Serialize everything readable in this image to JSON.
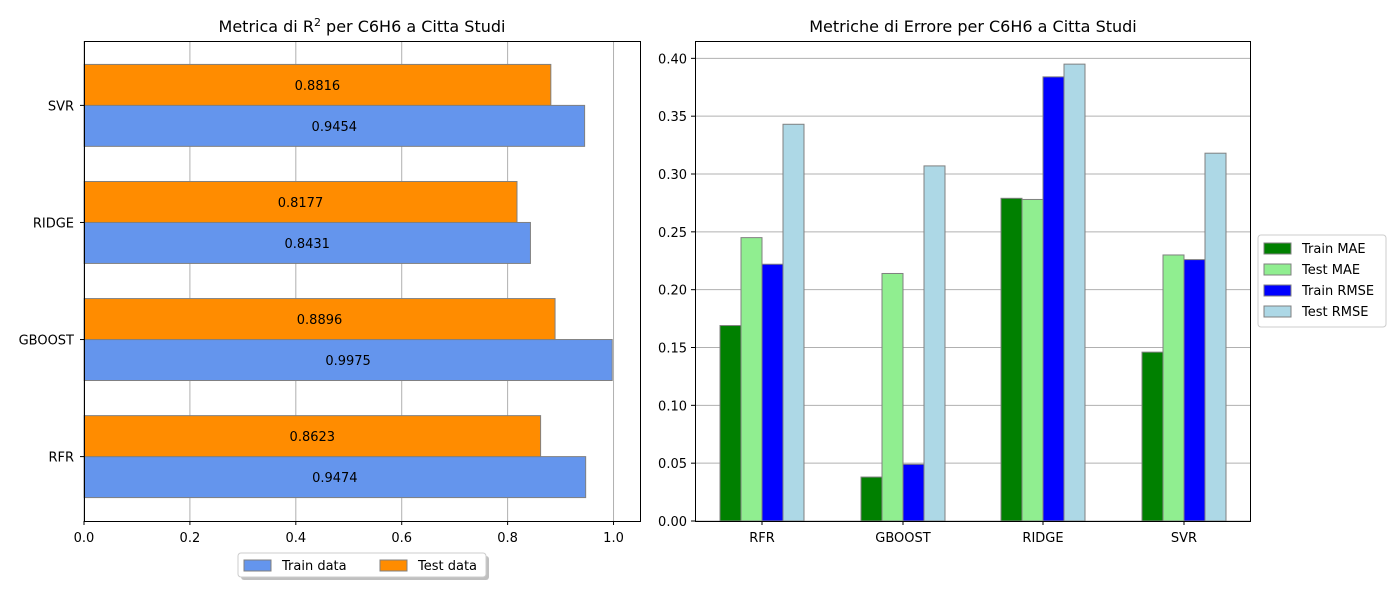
{
  "chart_data": [
    {
      "type": "bar",
      "orientation": "horizontal",
      "title_prefix": "Metrica di R",
      "title_superscript": "2",
      "title_suffix": " per C6H6 a Citta Studi",
      "categories": [
        "RFR",
        "GBOOST",
        "RIDGE",
        "SVR"
      ],
      "series": [
        {
          "name": "Train data",
          "values": [
            0.9474,
            0.9975,
            0.8431,
            0.9454
          ],
          "color": "#6495ed"
        },
        {
          "name": "Test data",
          "values": [
            0.8623,
            0.8896,
            0.8177,
            0.8816
          ],
          "color": "#ff8c00"
        }
      ],
      "xlim": [
        0.0,
        1.05
      ],
      "xticks": [
        "0.0",
        "0.2",
        "0.4",
        "0.6",
        "0.8",
        "1.0"
      ],
      "grid": true,
      "legend_position": "bottom-center"
    },
    {
      "type": "bar",
      "title": "Metriche di Errore per C6H6 a Citta Studi",
      "categories": [
        "RFR",
        "GBOOST",
        "RIDGE",
        "SVR"
      ],
      "series": [
        {
          "name": "Train MAE",
          "values": [
            0.169,
            0.038,
            0.279,
            0.146
          ],
          "color": "#008000"
        },
        {
          "name": "Test MAE",
          "values": [
            0.245,
            0.214,
            0.278,
            0.23
          ],
          "color": "#90ee90"
        },
        {
          "name": "Train RMSE",
          "values": [
            0.222,
            0.049,
            0.384,
            0.226
          ],
          "color": "#0000ff"
        },
        {
          "name": "Test RMSE",
          "values": [
            0.343,
            0.307,
            0.395,
            0.318
          ],
          "color": "#add8e6"
        }
      ],
      "ylim": [
        0.0,
        0.415
      ],
      "yticks": [
        "0.00",
        "0.05",
        "0.10",
        "0.15",
        "0.20",
        "0.25",
        "0.30",
        "0.35",
        "0.40"
      ],
      "grid": true,
      "legend_position": "right"
    }
  ]
}
